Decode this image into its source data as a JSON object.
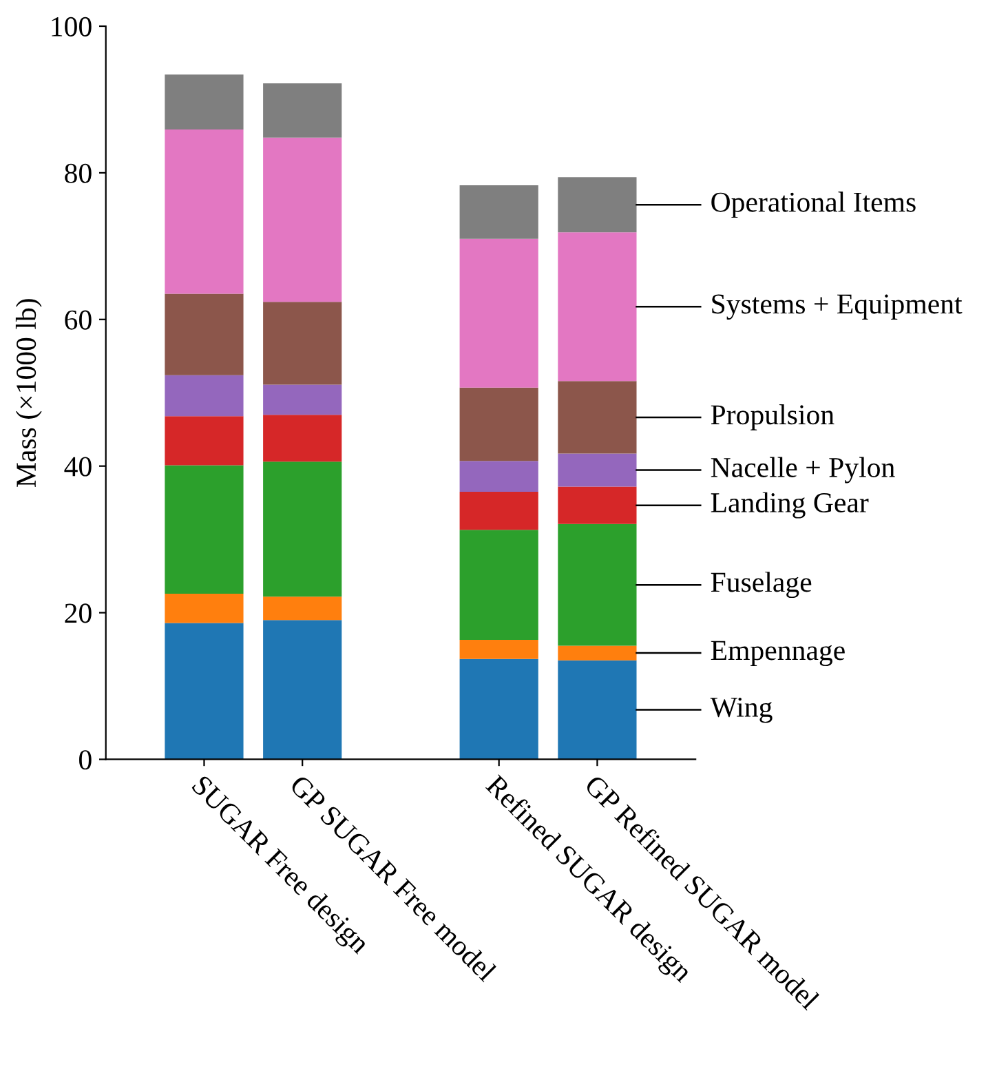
{
  "chart_data": {
    "type": "bar",
    "stacked": true,
    "ylabel": "Mass (×1000 lb)",
    "categories": [
      "SUGAR Free design",
      "GP SUGAR Free model",
      null,
      "Refined SUGAR design",
      "GP Refined SUGAR model"
    ],
    "series": [
      {
        "name": "Wing",
        "color": "#1f77b4",
        "values": [
          18.6,
          19.0,
          null,
          13.7,
          13.5
        ]
      },
      {
        "name": "Empennage",
        "color": "#ff7f0e",
        "values": [
          4.0,
          3.2,
          null,
          2.6,
          2.0
        ]
      },
      {
        "name": "Fuselage",
        "color": "#2ca02c",
        "values": [
          17.5,
          18.4,
          null,
          15.0,
          16.6
        ]
      },
      {
        "name": "Landing Gear",
        "color": "#d62728",
        "values": [
          6.7,
          6.4,
          null,
          5.2,
          5.1
        ]
      },
      {
        "name": "Nacelle + Pylon",
        "color": "#9467bd",
        "values": [
          5.6,
          4.1,
          null,
          4.2,
          4.5
        ]
      },
      {
        "name": "Propulsion",
        "color": "#8c564b",
        "values": [
          11.1,
          11.3,
          null,
          10.0,
          9.9
        ]
      },
      {
        "name": "Systems + Equipment",
        "color": "#e377c2",
        "values": [
          22.4,
          22.4,
          null,
          20.3,
          20.3
        ]
      },
      {
        "name": "Operational Items",
        "color": "#7f7f7f",
        "values": [
          7.5,
          7.4,
          null,
          7.3,
          7.5
        ]
      }
    ],
    "ylim": [
      0,
      100
    ],
    "yticks": [
      0,
      20,
      40,
      60,
      80,
      100
    ],
    "grid": false,
    "legend": false
  }
}
